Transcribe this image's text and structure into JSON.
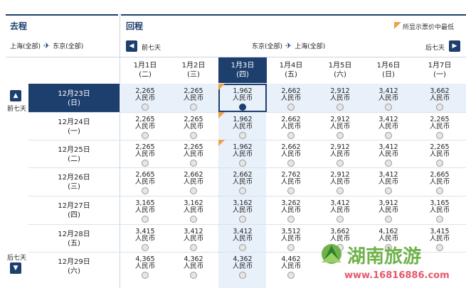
{
  "outbound": {
    "title": "去程",
    "origin": "上海(全部)",
    "destination": "东京(全部)"
  },
  "return": {
    "title": "回程",
    "origin": "东京(全部)",
    "destination": "上海(全部)",
    "prev_week": "前七天",
    "next_week": "后七天"
  },
  "legend": {
    "text": "所显示票价中最低"
  },
  "side": {
    "prev_week": "前七天",
    "next_week": "后七天"
  },
  "return_dates": [
    {
      "date": "1月1日",
      "weekday": "(二)"
    },
    {
      "date": "1月2日",
      "weekday": "(三)"
    },
    {
      "date": "1月3日",
      "weekday": "(四)"
    },
    {
      "date": "1月4日",
      "weekday": "(五)"
    },
    {
      "date": "1月5日",
      "weekday": "(六)"
    },
    {
      "date": "1月6日",
      "weekday": "(日)"
    },
    {
      "date": "1月7日",
      "weekday": "(一)"
    }
  ],
  "selected_return_index": 2,
  "outbound_dates": [
    {
      "date": "12月23日",
      "weekday": "(日)"
    },
    {
      "date": "12月24日",
      "weekday": "(一)"
    },
    {
      "date": "12月25日",
      "weekday": "(二)"
    },
    {
      "date": "12月26日",
      "weekday": "(三)"
    },
    {
      "date": "12月27日",
      "weekday": "(四)"
    },
    {
      "date": "12月28日",
      "weekday": "(五)"
    },
    {
      "date": "12月29日",
      "weekday": "(六)"
    }
  ],
  "selected_outbound_index": 0,
  "currency": "人民币",
  "prices": [
    [
      "2,265",
      "2,265",
      "1,962",
      "2,662",
      "2,912",
      "3,412",
      "3,662"
    ],
    [
      "2,265",
      "2,265",
      "1,962",
      "2,662",
      "2,912",
      "3,412",
      "2,265"
    ],
    [
      "2,265",
      "2,265",
      "1,962",
      "2,662",
      "2,912",
      "3,412",
      "2,265"
    ],
    [
      "2,665",
      "2,662",
      "2,662",
      "2,762",
      "2,912",
      "3,412",
      "2,665"
    ],
    [
      "3,165",
      "3,162",
      "3,162",
      "3,262",
      "3,412",
      "3,912",
      "3,165"
    ],
    [
      "3,415",
      "3,412",
      "3,412",
      "3,512",
      "3,662",
      "4,162",
      "3,415"
    ],
    [
      "4,365",
      "4,362",
      "4,362",
      "4,462",
      "",
      "",
      ""
    ]
  ],
  "lowest_fare_cells": [
    [
      0,
      2
    ],
    [
      1,
      2
    ],
    [
      2,
      2
    ]
  ],
  "chosen_cell": [
    0,
    2
  ],
  "watermark": {
    "text": "湖南旅游",
    "url": "www.16816886.com"
  },
  "colors": {
    "navy": "#1d3f6e",
    "fare_blue": "#e8f0fa",
    "orange": "#f0a04a",
    "grid": "#c9d5e4"
  }
}
